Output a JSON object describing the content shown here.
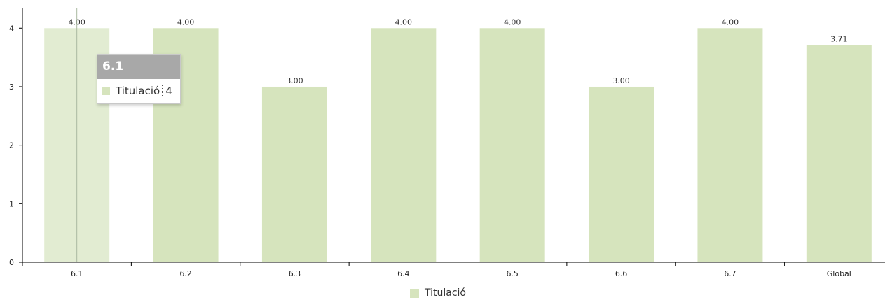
{
  "chart_data": {
    "type": "bar",
    "categories": [
      "6.1",
      "6.2",
      "6.3",
      "6.4",
      "6.5",
      "6.6",
      "6.7",
      "Global"
    ],
    "series": [
      {
        "name": "Titulació",
        "values": [
          4,
          4,
          3,
          4,
          4,
          3,
          4,
          3.71
        ]
      }
    ],
    "data_labels": [
      "4.00",
      "4.00",
      "3.00",
      "4.00",
      "4.00",
      "3.00",
      "4.00",
      "3.71"
    ],
    "yticks": [
      "0",
      "1",
      "2",
      "3",
      "4"
    ],
    "ylim": [
      0,
      4.35
    ],
    "grid": false,
    "legend_position": "bottom-center",
    "highlighted_category": "6.1",
    "bar_color": "#d6e4bd",
    "bar_highlight_color": "#e2ecd2"
  },
  "legend": {
    "label": "Titulació"
  },
  "tooltip": {
    "title": "6.1",
    "series_name": "Titulació",
    "value": "4"
  }
}
